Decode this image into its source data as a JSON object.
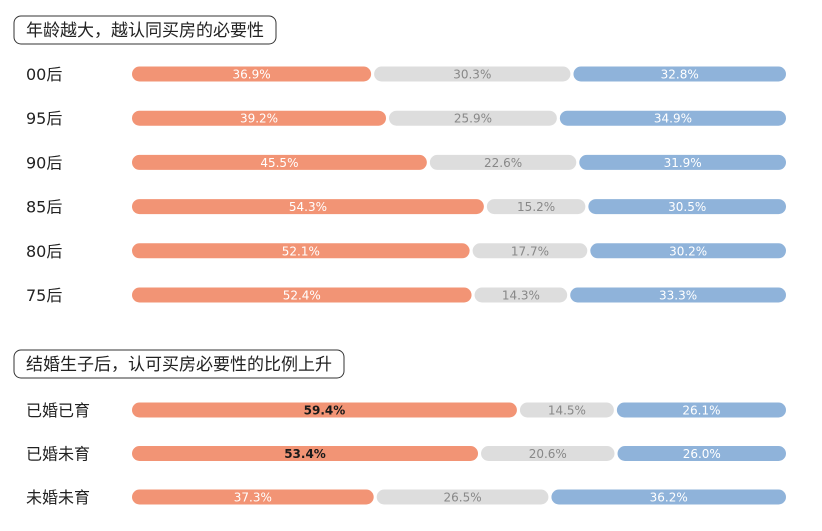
{
  "chart_data": [
    {
      "type": "bar",
      "stacked": "percent",
      "orientation": "horizontal",
      "title": "年龄越大，越认同买房的必要性",
      "categories": [
        "00后",
        "95后",
        "90后",
        "85后",
        "80后",
        "75后"
      ],
      "series": [
        {
          "values": [
            36.9,
            39.2,
            45.5,
            54.3,
            52.1,
            52.4
          ],
          "labels": [
            "36.9%",
            "39.2%",
            "45.5%",
            "54.3%",
            "52.1%",
            "52.4%"
          ]
        },
        {
          "values": [
            30.3,
            25.9,
            22.6,
            15.2,
            17.7,
            14.3
          ],
          "labels": [
            "30.3%",
            "25.9%",
            "22.6%",
            "15.2%",
            "17.7%",
            "14.3%"
          ]
        },
        {
          "values": [
            32.8,
            34.9,
            31.9,
            30.5,
            30.2,
            33.3
          ],
          "labels": [
            "32.8%",
            "34.9%",
            "31.9%",
            "30.5%",
            "30.2%",
            "33.3%"
          ]
        }
      ]
    },
    {
      "type": "bar",
      "stacked": "percent",
      "orientation": "horizontal",
      "title": "结婚生子后，认可买房必要性的比例上升",
      "categories": [
        "已婚已育",
        "已婚未育",
        "未婚未育"
      ],
      "series": [
        {
          "values": [
            59.4,
            53.4,
            37.3
          ],
          "labels": [
            "59.4%",
            "53.4%",
            "37.3%"
          ]
        },
        {
          "values": [
            14.5,
            20.6,
            26.5
          ],
          "labels": [
            "14.5%",
            "20.6%",
            "26.5%"
          ]
        },
        {
          "values": [
            26.1,
            26.0,
            36.2
          ],
          "labels": [
            "26.1%",
            "26.0%",
            "36.2%"
          ]
        }
      ]
    }
  ],
  "colors": {
    "series": [
      "#f29475",
      "#dddddd",
      "#8fb3da"
    ],
    "label_text": [
      "#ffffff",
      "#888888",
      "#ffffff"
    ],
    "highlight_label_text": "#1a1a1a",
    "title_border": "#333333",
    "category_text": "#222222"
  },
  "highlights": {
    "chart": 1,
    "series": 0,
    "categories": [
      "已婚已育",
      "已婚未育"
    ]
  }
}
